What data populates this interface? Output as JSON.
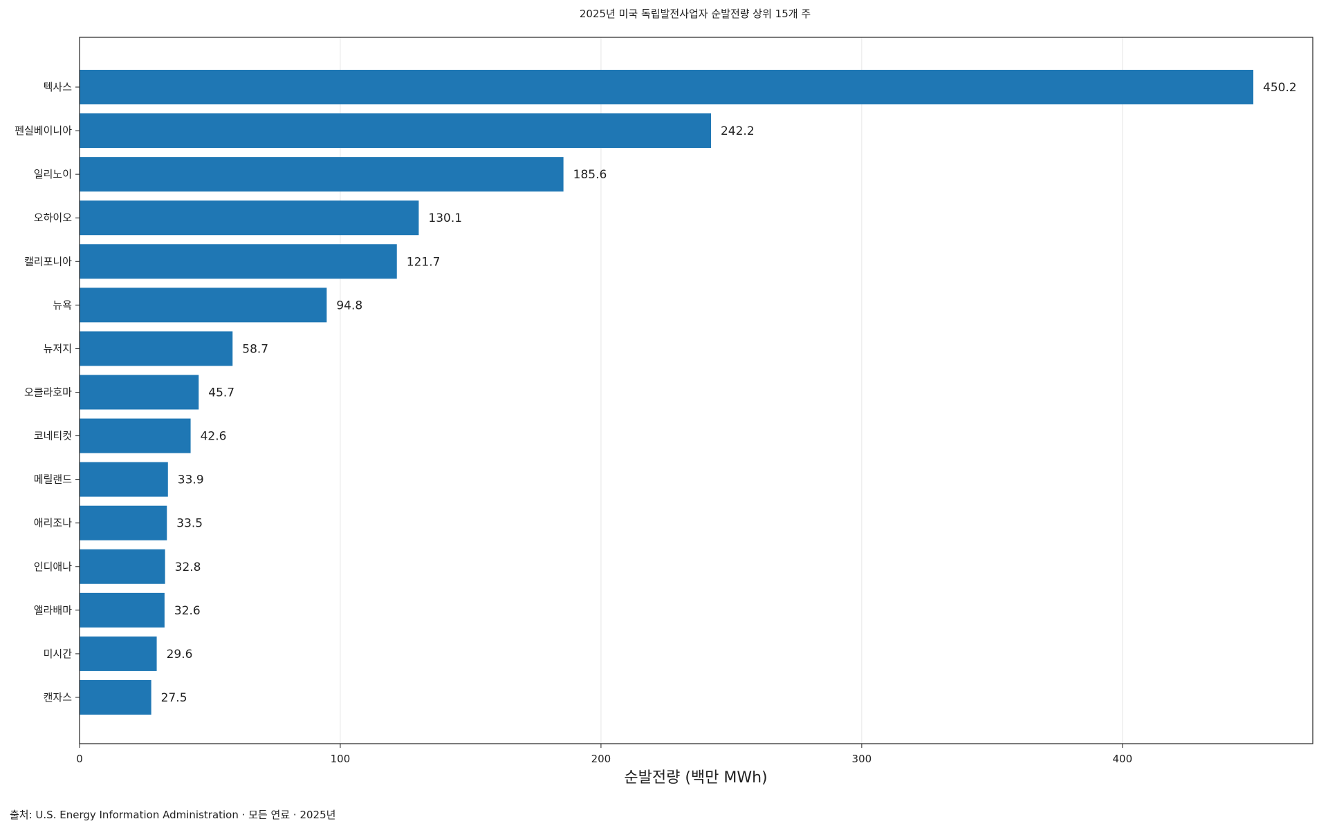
{
  "chart_data": {
    "type": "bar",
    "orientation": "horizontal",
    "title": "2025년 미국 독립발전사업자 순발전량 상위 15개 주",
    "xlabel": "순발전량 (백만 MWh)",
    "ylabel": "",
    "xlim": [
      0,
      473
    ],
    "xticks": [
      0,
      100,
      200,
      300,
      400
    ],
    "grid": "vertical",
    "bar_color": "#1f77b4",
    "categories": [
      "텍사스",
      "펜실베이니아",
      "일리노이",
      "오하이오",
      "캘리포니아",
      "뉴욕",
      "뉴저지",
      "오클라호마",
      "코네티컷",
      "메릴랜드",
      "애리조나",
      "인디애나",
      "앨라배마",
      "미시간",
      "캔자스"
    ],
    "values": [
      450.2,
      242.2,
      185.6,
      130.1,
      121.7,
      94.8,
      58.7,
      45.7,
      42.6,
      33.9,
      33.5,
      32.8,
      32.6,
      29.6,
      27.5
    ],
    "value_labels": [
      "450.2",
      "242.2",
      "185.6",
      "130.1",
      "121.7",
      "94.8",
      "58.7",
      "45.7",
      "42.6",
      "33.9",
      "33.5",
      "32.8",
      "32.6",
      "29.6",
      "27.5"
    ]
  },
  "source_note": "출처: U.S. Energy Information Administration · 모든 연료 · 2025년"
}
